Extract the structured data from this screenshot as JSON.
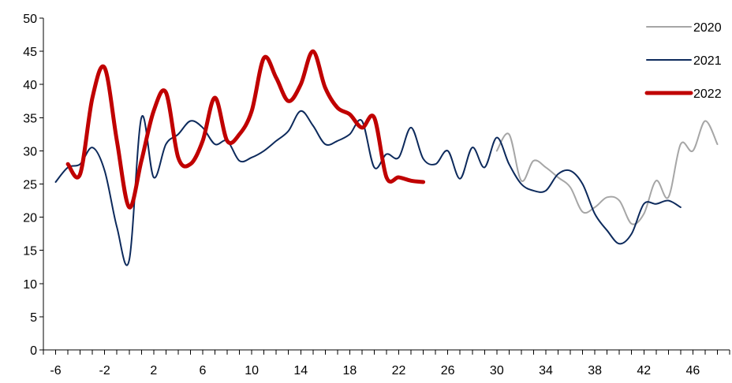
{
  "chart_data": {
    "type": "line",
    "title": "",
    "xlabel": "",
    "ylabel": "",
    "xlim": [
      -7,
      49
    ],
    "ylim": [
      0,
      50
    ],
    "y_ticks": [
      0,
      5,
      10,
      15,
      20,
      25,
      30,
      35,
      40,
      45,
      50
    ],
    "x_tick_labels": [
      -6,
      -2,
      2,
      6,
      10,
      14,
      18,
      22,
      26,
      30,
      34,
      38,
      42,
      46
    ],
    "x_minor_ticks_every": 1,
    "grid": false,
    "legend": "top-right",
    "series": [
      {
        "name": "2020",
        "color": "#a6a6a6",
        "width": 2,
        "x": [
          30,
          31,
          32,
          33,
          34,
          35,
          36,
          37,
          38,
          39,
          40,
          41,
          42,
          43,
          44,
          45,
          46,
          47,
          48
        ],
        "values": [
          30.0,
          32.5,
          25.5,
          28.5,
          27.5,
          26.0,
          24.5,
          20.8,
          21.5,
          23.0,
          22.5,
          19.0,
          20.5,
          25.5,
          23.0,
          31.0,
          30.0,
          34.5,
          31.0
        ]
      },
      {
        "name": "2021",
        "color": "#0d2a5c",
        "width": 2,
        "x": [
          -6,
          -5,
          -4,
          -3,
          -2,
          -1,
          0,
          1,
          2,
          3,
          4,
          5,
          6,
          7,
          8,
          9,
          10,
          11,
          12,
          13,
          14,
          15,
          16,
          17,
          18,
          19,
          20,
          21,
          22,
          23,
          24,
          25,
          26,
          27,
          28,
          29,
          30,
          31,
          32,
          33,
          34,
          35,
          36,
          37,
          38,
          39,
          40,
          41,
          42,
          43,
          44,
          45
        ],
        "values": [
          25.3,
          27.5,
          28.0,
          30.5,
          27.0,
          18.5,
          13.5,
          35.0,
          26.0,
          31.0,
          32.5,
          34.5,
          33.5,
          31.0,
          31.5,
          28.5,
          29.0,
          30.0,
          31.5,
          33.0,
          36.0,
          33.8,
          31.0,
          31.5,
          32.5,
          34.5,
          27.5,
          29.5,
          29.0,
          33.5,
          28.8,
          28.0,
          30.0,
          25.8,
          30.5,
          27.5,
          32.0,
          28.0,
          25.0,
          24.0,
          24.0,
          26.5,
          27.0,
          25.0,
          20.5,
          18.0,
          16.0,
          17.5,
          22.0,
          22.0,
          22.5,
          21.5
        ]
      },
      {
        "name": "2022",
        "color": "#c00000",
        "width": 5,
        "x": [
          -5,
          -4,
          -3,
          -2,
          -1,
          0,
          1,
          2,
          3,
          4,
          5,
          6,
          7,
          8,
          9,
          10,
          11,
          12,
          13,
          14,
          15,
          16,
          17,
          18,
          19,
          20,
          21,
          22,
          23,
          24
        ],
        "values": [
          28.0,
          26.5,
          38.0,
          42.5,
          31.5,
          21.5,
          28.5,
          36.0,
          38.8,
          29.0,
          28.0,
          31.5,
          38.0,
          31.5,
          32.5,
          36.0,
          44.0,
          41.0,
          37.5,
          40.0,
          45.0,
          39.5,
          36.5,
          35.5,
          33.5,
          35.0,
          26.0,
          26.0,
          25.5,
          25.3
        ]
      }
    ]
  }
}
